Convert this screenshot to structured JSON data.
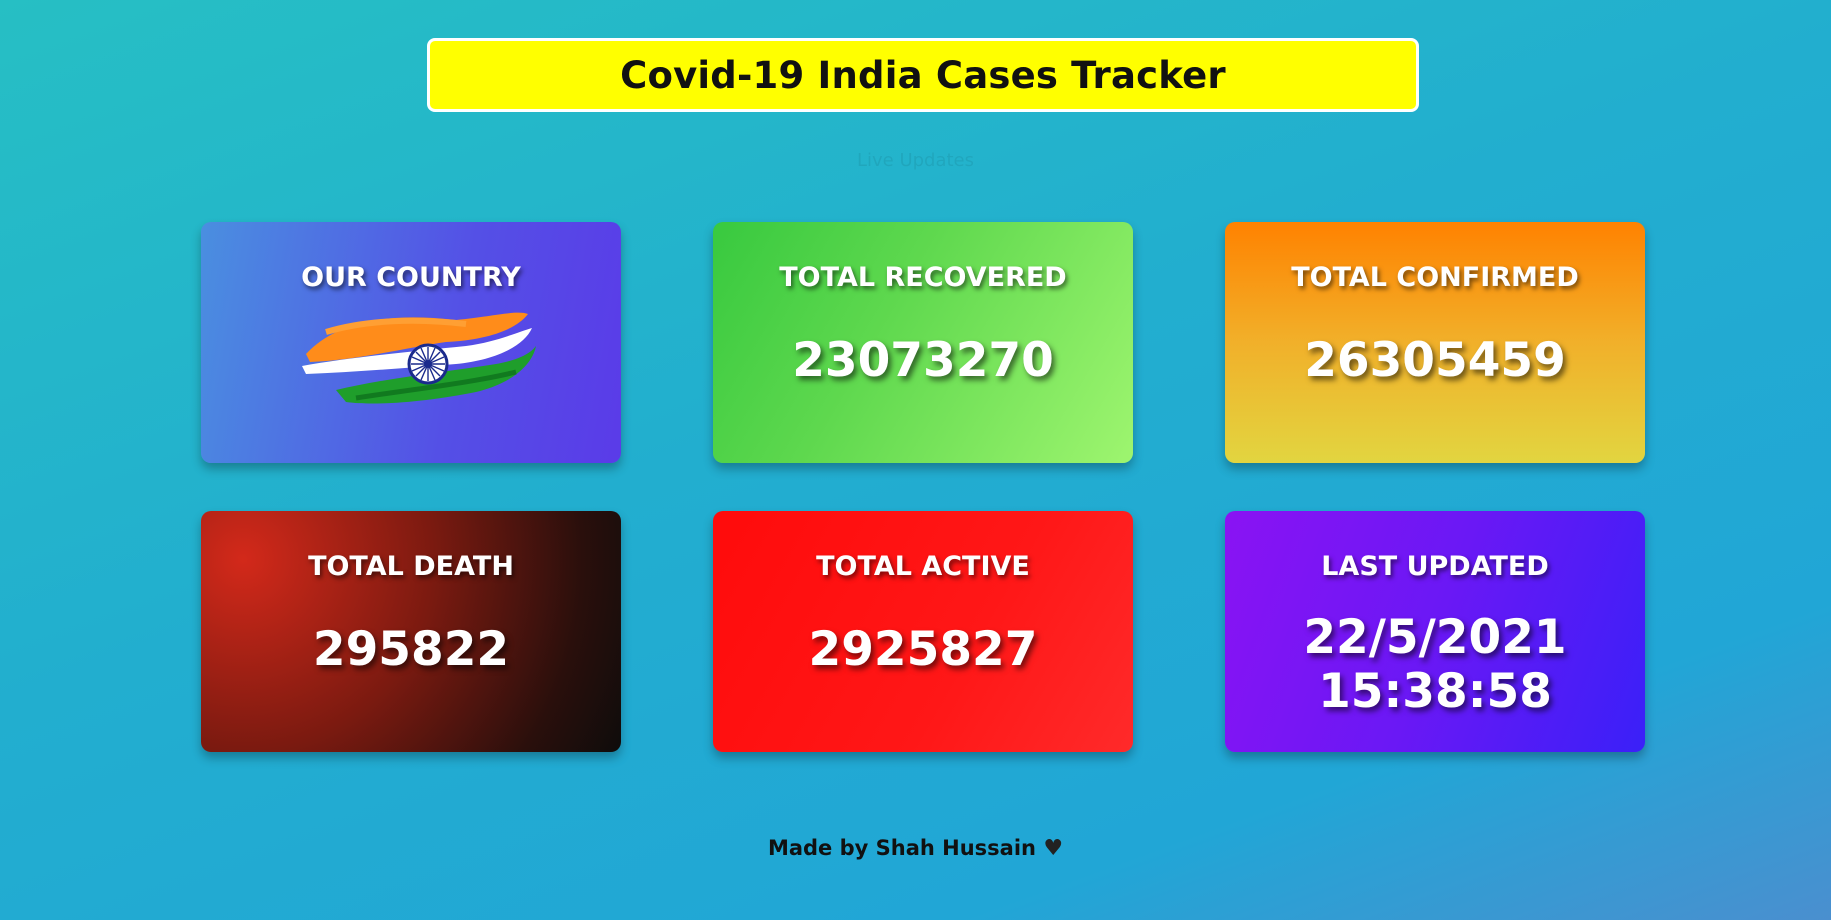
{
  "header": {
    "title": "Covid-19 India Cases Tracker",
    "subtitle": "Live Updates"
  },
  "cards": {
    "country": {
      "label": "OUR COUNTRY"
    },
    "recovered": {
      "label": "TOTAL RECOVERED",
      "value": "23073270"
    },
    "confirmed": {
      "label": "TOTAL CONFIRMED",
      "value": "26305459"
    },
    "death": {
      "label": "TOTAL DEATH",
      "value": "295822"
    },
    "active": {
      "label": "TOTAL ACTIVE",
      "value": "2925827"
    },
    "updated": {
      "label": "LAST UPDATED",
      "date": "22/5/2021",
      "time": "15:38:58"
    }
  },
  "footer": {
    "text": "Made by Shah Hussain",
    "icon": "heart-icon"
  }
}
